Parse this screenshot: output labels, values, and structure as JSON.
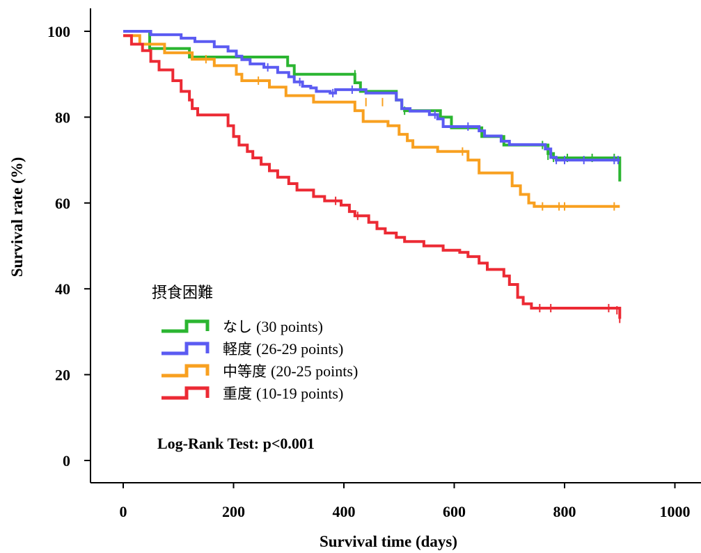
{
  "chart_data": {
    "type": "line",
    "xlabel": "Survival time (days)",
    "ylabel": "Survival rate (%)",
    "xlim": [
      0,
      1000
    ],
    "ylim": [
      0,
      100
    ],
    "xticks": [
      "0",
      "200",
      "400",
      "600",
      "800",
      "1000"
    ],
    "yticks": [
      "0",
      "20",
      "40",
      "60",
      "80",
      "100"
    ],
    "grid": false,
    "legend_placement": "left-center",
    "legend_title": "摂食困難",
    "annotation": "Log-Rank Test: p<0.001",
    "series": [
      {
        "name_jp": "なし",
        "name_points": "(30 points)",
        "color": "#2bb531",
        "points": [
          [
            0,
            100
          ],
          [
            48,
            100
          ],
          [
            48,
            96
          ],
          [
            120,
            96
          ],
          [
            120,
            94
          ],
          [
            298,
            94
          ],
          [
            298,
            92
          ],
          [
            310,
            92
          ],
          [
            310,
            90
          ],
          [
            420,
            90
          ],
          [
            420,
            88
          ],
          [
            430,
            88
          ],
          [
            430,
            86
          ],
          [
            495,
            86
          ],
          [
            495,
            84
          ],
          [
            505,
            84
          ],
          [
            505,
            82
          ],
          [
            510,
            82
          ],
          [
            510,
            81.5
          ],
          [
            575,
            81.5
          ],
          [
            575,
            80
          ],
          [
            595,
            80
          ],
          [
            595,
            77.5
          ],
          [
            650,
            77.5
          ],
          [
            650,
            75.5
          ],
          [
            690,
            75.5
          ],
          [
            690,
            73.5
          ],
          [
            770,
            73.5
          ],
          [
            770,
            71.5
          ],
          [
            780,
            71.5
          ],
          [
            780,
            70.5
          ],
          [
            900,
            70.5
          ],
          [
            900,
            65
          ]
        ],
        "censors": [
          [
            420,
            90
          ],
          [
            510,
            81.5
          ],
          [
            760,
            73.5
          ],
          [
            770,
            71
          ],
          [
            780,
            70.5
          ],
          [
            805,
            70.5
          ],
          [
            850,
            70.5
          ],
          [
            890,
            70.5
          ]
        ]
      },
      {
        "name_jp": "軽度",
        "name_points": "(26-29 points)",
        "color": "#5b5bf2",
        "points": [
          [
            0,
            100
          ],
          [
            50,
            100
          ],
          [
            50,
            99.2
          ],
          [
            105,
            99.2
          ],
          [
            105,
            98.4
          ],
          [
            130,
            98.4
          ],
          [
            130,
            97.6
          ],
          [
            165,
            97.6
          ],
          [
            165,
            96.4
          ],
          [
            190,
            96.4
          ],
          [
            190,
            95.4
          ],
          [
            205,
            95.4
          ],
          [
            205,
            94.2
          ],
          [
            215,
            94.2
          ],
          [
            215,
            93.4
          ],
          [
            230,
            93.4
          ],
          [
            230,
            92.4
          ],
          [
            255,
            92.4
          ],
          [
            255,
            91.6
          ],
          [
            280,
            91.6
          ],
          [
            280,
            90.4
          ],
          [
            300,
            90.4
          ],
          [
            300,
            89.4
          ],
          [
            310,
            89.4
          ],
          [
            310,
            88.2
          ],
          [
            325,
            88.2
          ],
          [
            325,
            87.2
          ],
          [
            340,
            87.2
          ],
          [
            340,
            86.8
          ],
          [
            350,
            86.8
          ],
          [
            350,
            86
          ],
          [
            375,
            86
          ],
          [
            375,
            85.6
          ],
          [
            385,
            85.6
          ],
          [
            385,
            86.4
          ],
          [
            440,
            86.4
          ],
          [
            440,
            85.6
          ],
          [
            495,
            85.6
          ],
          [
            495,
            84
          ],
          [
            505,
            84
          ],
          [
            505,
            82
          ],
          [
            520,
            82
          ],
          [
            520,
            81.4
          ],
          [
            555,
            81.4
          ],
          [
            555,
            80.6
          ],
          [
            570,
            80.6
          ],
          [
            570,
            79.6
          ],
          [
            580,
            79.6
          ],
          [
            580,
            77.8
          ],
          [
            645,
            77.8
          ],
          [
            645,
            76.8
          ],
          [
            655,
            76.8
          ],
          [
            655,
            75.6
          ],
          [
            685,
            75.6
          ],
          [
            685,
            74.4
          ],
          [
            700,
            74.4
          ],
          [
            700,
            73.6
          ],
          [
            765,
            73.6
          ],
          [
            765,
            72.6
          ],
          [
            775,
            72.6
          ],
          [
            775,
            70.6
          ],
          [
            785,
            70.6
          ],
          [
            785,
            70
          ],
          [
            900,
            70
          ]
        ],
        "censors": [
          [
            262,
            91.6
          ],
          [
            320,
            88.2
          ],
          [
            380,
            85.6
          ],
          [
            415,
            86.4
          ],
          [
            565,
            80.6
          ],
          [
            625,
            77.8
          ],
          [
            785,
            70
          ],
          [
            800,
            70
          ],
          [
            835,
            70
          ],
          [
            890,
            70
          ],
          [
            897,
            70
          ]
        ]
      },
      {
        "name_jp": "中等度",
        "name_points": "(20-25 points)",
        "color": "#f8a020",
        "points": [
          [
            0,
            99
          ],
          [
            30,
            99
          ],
          [
            30,
            97
          ],
          [
            75,
            97
          ],
          [
            75,
            95
          ],
          [
            125,
            95
          ],
          [
            125,
            93.5
          ],
          [
            165,
            93.5
          ],
          [
            165,
            92
          ],
          [
            205,
            92
          ],
          [
            205,
            90
          ],
          [
            215,
            90
          ],
          [
            215,
            88.5
          ],
          [
            265,
            88.5
          ],
          [
            265,
            87
          ],
          [
            295,
            87
          ],
          [
            295,
            85
          ],
          [
            345,
            85
          ],
          [
            345,
            83.5
          ],
          [
            420,
            83.5
          ],
          [
            420,
            81.5
          ],
          [
            435,
            81.5
          ],
          [
            435,
            79
          ],
          [
            480,
            79
          ],
          [
            480,
            78
          ],
          [
            500,
            78
          ],
          [
            500,
            76
          ],
          [
            515,
            76
          ],
          [
            515,
            74.5
          ],
          [
            525,
            74.5
          ],
          [
            525,
            73
          ],
          [
            570,
            73
          ],
          [
            570,
            72
          ],
          [
            625,
            72
          ],
          [
            625,
            70
          ],
          [
            645,
            70
          ],
          [
            645,
            67
          ],
          [
            705,
            67
          ],
          [
            705,
            64
          ],
          [
            720,
            64
          ],
          [
            720,
            62
          ],
          [
            735,
            62
          ],
          [
            735,
            60
          ],
          [
            745,
            60
          ],
          [
            745,
            59.2
          ],
          [
            900,
            59.2
          ]
        ],
        "censors": [
          [
            150,
            93.5
          ],
          [
            245,
            88.5
          ],
          [
            440,
            83.5
          ],
          [
            470,
            83.5
          ],
          [
            615,
            72
          ],
          [
            760,
            59.2
          ],
          [
            790,
            59.2
          ],
          [
            800,
            59.2
          ],
          [
            890,
            59.2
          ]
        ]
      },
      {
        "name_jp": "重度",
        "name_points": "(10-19 points)",
        "color": "#ec2a34",
        "points": [
          [
            0,
            99
          ],
          [
            15,
            99
          ],
          [
            15,
            97
          ],
          [
            35,
            97
          ],
          [
            35,
            95.5
          ],
          [
            50,
            95.5
          ],
          [
            50,
            93
          ],
          [
            65,
            93
          ],
          [
            65,
            91
          ],
          [
            90,
            91
          ],
          [
            90,
            88.5
          ],
          [
            105,
            88.5
          ],
          [
            105,
            86
          ],
          [
            120,
            86
          ],
          [
            120,
            84
          ],
          [
            125,
            84
          ],
          [
            125,
            82
          ],
          [
            135,
            82
          ],
          [
            135,
            80.5
          ],
          [
            190,
            80.5
          ],
          [
            190,
            78
          ],
          [
            200,
            78
          ],
          [
            200,
            75.5
          ],
          [
            210,
            75.5
          ],
          [
            210,
            73.5
          ],
          [
            225,
            73.5
          ],
          [
            225,
            72
          ],
          [
            235,
            72
          ],
          [
            235,
            70.5
          ],
          [
            250,
            70.5
          ],
          [
            250,
            69
          ],
          [
            265,
            69
          ],
          [
            265,
            67.5
          ],
          [
            280,
            67.5
          ],
          [
            280,
            66
          ],
          [
            300,
            66
          ],
          [
            300,
            64.5
          ],
          [
            315,
            64.5
          ],
          [
            315,
            63
          ],
          [
            345,
            63
          ],
          [
            345,
            61.5
          ],
          [
            365,
            61.5
          ],
          [
            365,
            60.5
          ],
          [
            395,
            60.5
          ],
          [
            395,
            59.5
          ],
          [
            410,
            59.5
          ],
          [
            410,
            58
          ],
          [
            420,
            58
          ],
          [
            420,
            57
          ],
          [
            445,
            57
          ],
          [
            445,
            55.5
          ],
          [
            460,
            55.5
          ],
          [
            460,
            54
          ],
          [
            475,
            54
          ],
          [
            475,
            53
          ],
          [
            495,
            53
          ],
          [
            495,
            52
          ],
          [
            510,
            52
          ],
          [
            510,
            51
          ],
          [
            545,
            51
          ],
          [
            545,
            50
          ],
          [
            580,
            50
          ],
          [
            580,
            49
          ],
          [
            610,
            49
          ],
          [
            610,
            48.5
          ],
          [
            625,
            48.5
          ],
          [
            625,
            47.5
          ],
          [
            645,
            47.5
          ],
          [
            645,
            46
          ],
          [
            660,
            46
          ],
          [
            660,
            44.5
          ],
          [
            690,
            44.5
          ],
          [
            690,
            43
          ],
          [
            700,
            43
          ],
          [
            700,
            41
          ],
          [
            715,
            41
          ],
          [
            715,
            38
          ],
          [
            725,
            38
          ],
          [
            725,
            36.5
          ],
          [
            740,
            36.5
          ],
          [
            740,
            35.5
          ],
          [
            900,
            35.5
          ],
          [
            900,
            33
          ]
        ],
        "censors": [
          [
            385,
            60.5
          ],
          [
            425,
            57
          ],
          [
            755,
            35.5
          ],
          [
            775,
            35.5
          ],
          [
            880,
            35.5
          ],
          [
            895,
            35
          ],
          [
            900,
            33
          ]
        ]
      }
    ]
  }
}
